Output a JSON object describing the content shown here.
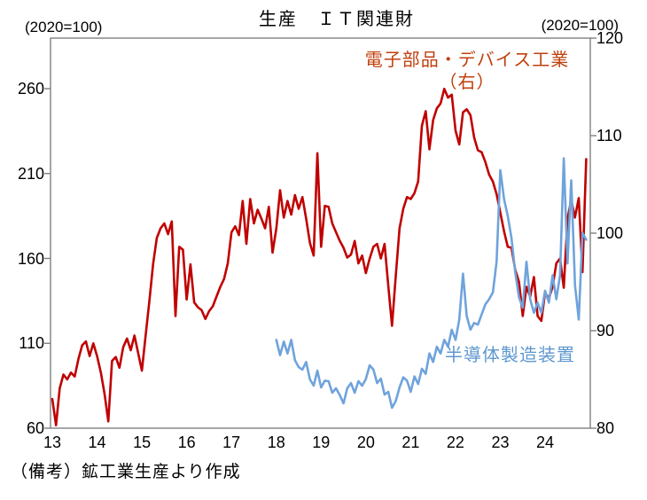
{
  "title": "生産　ＩＴ関連財",
  "left_axis": {
    "unit_label": "(2020=100)",
    "ticks": [
      60,
      110,
      160,
      210,
      260
    ]
  },
  "right_axis": {
    "unit_label": "(2020=100)",
    "ticks": [
      80,
      90,
      100,
      110,
      120
    ]
  },
  "x_axis": {
    "labels": [
      "13",
      "14",
      "15",
      "16",
      "17",
      "18",
      "19",
      "20",
      "21",
      "22",
      "23",
      "24"
    ]
  },
  "annotations": {
    "red_series_label_line1": "電子部品・デバイス工業",
    "red_series_label_line2": "（右）",
    "blue_series_label": "半導体製造装置"
  },
  "footer_note": "（備考）鉱工業生産より作成",
  "colors": {
    "red_line": "#C00000",
    "red_label_text": "#C0400E",
    "blue_line": "#6FA3DC",
    "blue_label_text": "#5E97D0",
    "frame": "#808080",
    "text": "#000000",
    "background": "#FFFFFF"
  },
  "chart_data": {
    "type": "line",
    "title": "生産　ＩＴ関連財",
    "frequency": "monthly",
    "x_tick_labels": [
      "13",
      "14",
      "15",
      "16",
      "17",
      "18",
      "19",
      "20",
      "21",
      "22",
      "23",
      "24"
    ],
    "left_axis": {
      "label": "(2020=100)",
      "ticks": [
        60,
        110,
        160,
        210,
        260
      ]
    },
    "right_axis": {
      "label": "(2020=100)",
      "ticks": [
        80,
        90,
        100,
        110,
        120
      ]
    },
    "grid": false,
    "series": [
      {
        "name": "電子部品・デバイス工業（右）",
        "axis": "right",
        "color_key": "red_line",
        "start": "2013-01",
        "values": [
          83.0,
          80.3,
          84.1,
          85.5,
          85.0,
          85.7,
          85.3,
          87.1,
          88.5,
          88.9,
          87.4,
          88.7,
          87.4,
          85.7,
          83.5,
          80.7,
          86.9,
          87.3,
          86.2,
          88.3,
          89.2,
          88.0,
          89.5,
          87.7,
          85.9,
          89.5,
          93.0,
          96.8,
          99.5,
          100.5,
          101.0,
          99.9,
          101.2,
          91.5,
          98.6,
          98.3,
          93.2,
          96.8,
          92.9,
          92.4,
          92.1,
          91.2,
          92.0,
          92.5,
          93.5,
          94.5,
          95.3,
          96.9,
          100.1,
          100.7,
          99.8,
          103.3,
          98.9,
          103.5,
          101.0,
          102.4,
          101.5,
          100.5,
          102.7,
          98.0,
          100.5,
          104.4,
          101.6,
          103.3,
          101.9,
          103.9,
          102.5,
          103.7,
          101.5,
          99.0,
          97.7,
          108.2,
          98.6,
          102.8,
          102.7,
          101.0,
          100.1,
          99.2,
          98.5,
          97.5,
          97.8,
          99.2,
          96.9,
          97.7,
          95.9,
          97.4,
          98.6,
          98.9,
          97.4,
          98.9,
          94.6,
          90.5,
          95.7,
          100.5,
          102.5,
          103.7,
          103.5,
          104.1,
          105.3,
          111.0,
          112.5,
          108.6,
          111.6,
          112.8,
          113.3,
          114.8,
          113.9,
          114.2,
          110.5,
          109.1,
          112.4,
          112.7,
          112.1,
          109.8,
          108.5,
          108.3,
          107.3,
          106.0,
          105.3,
          104.0,
          102.1,
          100.2,
          98.6,
          98.5,
          96.2,
          95.0,
          91.5,
          94.5,
          93.5,
          95.5,
          91.5,
          91.0,
          93.9,
          93.3,
          94.5,
          96.9,
          97.4,
          94.4,
          101.5,
          103.4,
          101.6,
          103.6,
          96.0,
          107.6
        ]
      },
      {
        "name": "半導体製造装置",
        "axis": "left",
        "color_key": "blue_line",
        "start": "2018-01",
        "values": [
          112.0,
          103.0,
          111.0,
          104.0,
          112.0,
          100.0,
          96.0,
          94.5,
          99.0,
          88.7,
          85.1,
          93.9,
          84.0,
          88.0,
          87.7,
          80.9,
          83.5,
          79.5,
          74.6,
          83.5,
          86.6,
          80.9,
          87.7,
          85.0,
          89.0,
          97.0,
          94.5,
          86.6,
          89.2,
          79.8,
          81.4,
          72.0,
          76.0,
          84.0,
          90.0,
          88.0,
          81.4,
          90.5,
          86.0,
          95.0,
          92.0,
          104.0,
          99.0,
          108.0,
          104.0,
          112.0,
          108.0,
          118.0,
          112.0,
          124.0,
          151.0,
          126.0,
          118.0,
          122.0,
          121.0,
          127.0,
          133.0,
          136.0,
          140.0,
          158.0,
          212.0,
          195.0,
          185.0,
          172.0,
          152.0,
          137.0,
          131.0,
          158.0,
          136.0,
          128.0,
          134.0,
          128.0,
          141.0,
          134.0,
          150.0,
          136.0,
          150.0,
          219.0,
          157.0,
          206.0,
          144.0,
          124.0,
          175.0,
          171.0
        ]
      }
    ]
  }
}
